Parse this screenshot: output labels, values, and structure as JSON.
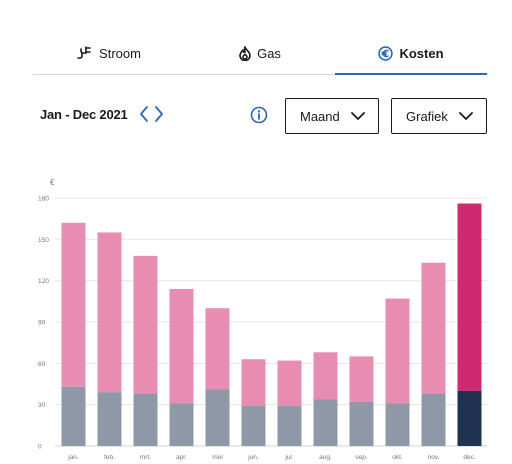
{
  "tabs": [
    {
      "label": "Stroom",
      "icon": "plug-icon",
      "active": false
    },
    {
      "label": "Gas",
      "icon": "flame-icon",
      "active": false
    },
    {
      "label": "Kosten",
      "icon": "euro-circle-icon",
      "active": true
    }
  ],
  "period": {
    "label": "Jan - Dec 2021"
  },
  "controls": {
    "interval_value": "Maand",
    "view_value": "Grafiek"
  },
  "colors": {
    "accent": "#2b66b8",
    "bar_top": "#e88db1",
    "bar_base": "#8e98a6",
    "highlight_top": "#cf2a6f",
    "highlight_base": "#1f3350",
    "grid": "#e6e6e6"
  },
  "chart_data": {
    "type": "bar",
    "stacked": true,
    "ylabel": "€",
    "ylim": [
      0,
      180
    ],
    "yticks": [
      0,
      30,
      60,
      90,
      120,
      150,
      180
    ],
    "grid": true,
    "categories": [
      "jan.",
      "feb.",
      "mrt.",
      "apr.",
      "mei",
      "jun.",
      "jul.",
      "aug.",
      "sep.",
      "okt.",
      "nov.",
      "dec."
    ],
    "series": [
      {
        "values": [
          43,
          39,
          38,
          31,
          41,
          29,
          29,
          34,
          32,
          31,
          38,
          40
        ]
      },
      {
        "values": [
          119,
          116,
          100,
          83,
          59,
          34,
          33,
          34,
          33,
          76,
          95,
          136
        ]
      }
    ],
    "highlighted_category": "dec."
  }
}
